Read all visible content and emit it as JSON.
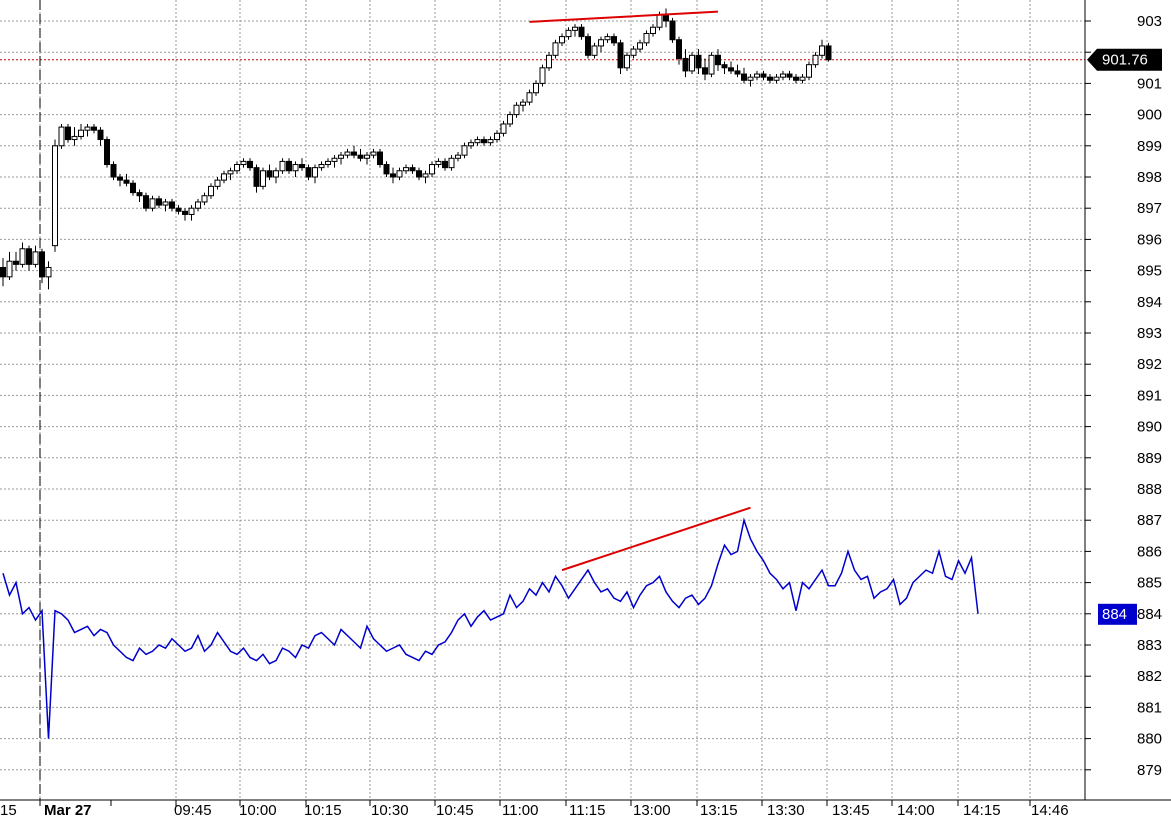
{
  "chart_data": {
    "type": "line",
    "y_axis": {
      "range": [
        878.2,
        903.6
      ],
      "ticks": [
        879,
        880,
        881,
        882,
        883,
        884,
        885,
        886,
        887,
        888,
        889,
        890,
        891,
        892,
        893,
        894,
        895,
        896,
        897,
        898,
        899,
        900,
        901,
        902,
        903
      ],
      "tick_labels": [
        "879",
        "880",
        "881",
        "882",
        "883",
        "884",
        "885",
        "886",
        "887",
        "888",
        "889",
        "890",
        "891",
        "892",
        "893",
        "894",
        "895",
        "896",
        "897",
        "898",
        "899",
        "900",
        "901",
        "",
        "903"
      ]
    },
    "x_axis": {
      "tick_labels": [
        "15",
        "Mar 27",
        "09:45",
        "10:00",
        "10:15",
        "10:30",
        "10:45",
        "11:00",
        "11:15",
        "13:00",
        "13:15",
        "13:30",
        "13:45",
        "14:00",
        "14:15",
        "14:46"
      ],
      "session_break_label": "Mar 27"
    },
    "grid": true,
    "series": [
      {
        "type": "candlestick",
        "color": "#000000",
        "last_price_label": "901.76",
        "last_price": 901.76,
        "ohlc": [
          [
            895.1,
            895.4,
            894.5,
            894.8
          ],
          [
            894.8,
            895.6,
            894.7,
            895.3
          ],
          [
            895.3,
            895.6,
            895.0,
            895.2
          ],
          [
            895.2,
            895.9,
            895.1,
            895.7
          ],
          [
            895.7,
            895.8,
            895.0,
            895.2
          ],
          [
            895.2,
            895.8,
            895.1,
            895.6
          ],
          [
            895.6,
            895.7,
            894.6,
            894.8
          ],
          [
            894.8,
            895.3,
            894.4,
            895.1
          ],
          [
            895.8,
            899.2,
            895.6,
            899.0
          ],
          [
            899.0,
            899.7,
            898.9,
            899.6
          ],
          [
            899.6,
            899.7,
            899.1,
            899.2
          ],
          [
            899.2,
            899.6,
            899.0,
            899.3
          ],
          [
            899.3,
            899.7,
            899.2,
            899.5
          ],
          [
            899.5,
            899.7,
            899.3,
            899.6
          ],
          [
            899.6,
            899.7,
            899.4,
            899.5
          ],
          [
            899.5,
            899.6,
            899.0,
            899.2
          ],
          [
            899.2,
            899.3,
            898.3,
            898.4
          ],
          [
            898.4,
            898.5,
            897.9,
            898.0
          ],
          [
            898.0,
            898.1,
            897.7,
            897.9
          ],
          [
            897.9,
            898.1,
            897.7,
            897.8
          ],
          [
            897.8,
            897.9,
            897.4,
            897.5
          ],
          [
            897.5,
            897.6,
            897.2,
            897.4
          ],
          [
            897.4,
            897.5,
            896.9,
            897.0
          ],
          [
            897.0,
            897.4,
            896.9,
            897.3
          ],
          [
            897.3,
            897.4,
            897.0,
            897.1
          ],
          [
            897.1,
            897.3,
            896.9,
            897.2
          ],
          [
            897.2,
            897.3,
            896.9,
            897.0
          ],
          [
            897.0,
            897.1,
            896.8,
            896.9
          ],
          [
            896.9,
            897.0,
            896.6,
            896.8
          ],
          [
            896.8,
            897.1,
            896.6,
            897.0
          ],
          [
            897.0,
            897.3,
            896.9,
            897.2
          ],
          [
            897.2,
            897.5,
            897.1,
            897.4
          ],
          [
            897.4,
            897.8,
            897.3,
            897.7
          ],
          [
            897.7,
            898.0,
            897.6,
            897.9
          ],
          [
            897.9,
            898.2,
            897.8,
            898.1
          ],
          [
            898.1,
            898.3,
            897.9,
            898.2
          ],
          [
            898.2,
            898.5,
            898.1,
            898.4
          ],
          [
            898.4,
            898.6,
            898.3,
            898.5
          ],
          [
            898.5,
            898.6,
            898.2,
            898.3
          ],
          [
            898.3,
            898.4,
            897.5,
            897.7
          ],
          [
            897.7,
            898.3,
            897.6,
            898.2
          ],
          [
            898.2,
            898.4,
            897.9,
            898.0
          ],
          [
            898.0,
            898.3,
            897.8,
            898.2
          ],
          [
            898.2,
            898.6,
            898.1,
            898.5
          ],
          [
            898.5,
            898.6,
            898.1,
            898.2
          ],
          [
            898.2,
            898.5,
            898.0,
            898.4
          ],
          [
            898.4,
            898.6,
            898.2,
            898.3
          ],
          [
            898.3,
            898.4,
            897.9,
            898.0
          ],
          [
            898.0,
            898.4,
            897.8,
            898.3
          ],
          [
            898.3,
            898.5,
            898.2,
            898.4
          ],
          [
            898.4,
            898.6,
            898.3,
            898.5
          ],
          [
            898.5,
            898.7,
            898.3,
            898.6
          ],
          [
            898.6,
            898.8,
            898.4,
            898.7
          ],
          [
            898.7,
            898.9,
            898.6,
            898.8
          ],
          [
            898.8,
            899.0,
            898.6,
            898.7
          ],
          [
            898.7,
            898.9,
            898.5,
            898.6
          ],
          [
            898.6,
            898.8,
            898.4,
            898.7
          ],
          [
            898.7,
            898.9,
            898.6,
            898.8
          ],
          [
            898.8,
            898.9,
            898.3,
            898.4
          ],
          [
            898.4,
            898.5,
            898.0,
            898.1
          ],
          [
            898.1,
            898.3,
            897.8,
            898.0
          ],
          [
            898.0,
            898.3,
            897.9,
            898.2
          ],
          [
            898.2,
            898.4,
            898.1,
            898.3
          ],
          [
            898.3,
            898.4,
            898.1,
            898.2
          ],
          [
            898.2,
            898.3,
            897.9,
            898.0
          ],
          [
            898.0,
            898.2,
            897.8,
            898.1
          ],
          [
            898.1,
            898.5,
            898.0,
            898.4
          ],
          [
            898.4,
            898.6,
            898.3,
            898.5
          ],
          [
            898.5,
            898.6,
            898.2,
            898.3
          ],
          [
            898.3,
            898.7,
            898.2,
            898.6
          ],
          [
            898.6,
            898.8,
            898.5,
            898.7
          ],
          [
            898.7,
            899.1,
            898.6,
            899.0
          ],
          [
            899.0,
            899.2,
            898.9,
            899.1
          ],
          [
            899.1,
            899.3,
            899.0,
            899.2
          ],
          [
            899.2,
            899.3,
            899.0,
            899.1
          ],
          [
            899.1,
            899.3,
            899.0,
            899.2
          ],
          [
            899.2,
            899.5,
            899.1,
            899.4
          ],
          [
            899.4,
            899.8,
            899.3,
            899.7
          ],
          [
            899.7,
            900.1,
            899.6,
            900.0
          ],
          [
            900.0,
            900.4,
            899.9,
            900.3
          ],
          [
            900.3,
            900.5,
            900.1,
            900.4
          ],
          [
            900.4,
            900.8,
            900.3,
            900.7
          ],
          [
            900.7,
            901.1,
            900.6,
            901.0
          ],
          [
            901.0,
            901.6,
            900.9,
            901.5
          ],
          [
            901.5,
            902.0,
            901.4,
            901.9
          ],
          [
            901.9,
            902.4,
            901.8,
            902.3
          ],
          [
            902.3,
            902.6,
            902.2,
            902.5
          ],
          [
            902.5,
            902.8,
            902.4,
            902.7
          ],
          [
            902.7,
            902.9,
            902.5,
            902.8
          ],
          [
            902.8,
            902.9,
            902.4,
            902.5
          ],
          [
            902.5,
            902.6,
            901.8,
            901.9
          ],
          [
            901.9,
            902.3,
            901.8,
            902.2
          ],
          [
            902.2,
            902.5,
            902.0,
            902.4
          ],
          [
            902.4,
            902.6,
            902.3,
            902.5
          ],
          [
            902.5,
            902.6,
            902.2,
            902.3
          ],
          [
            902.3,
            902.4,
            901.3,
            901.5
          ],
          [
            901.5,
            902.0,
            901.4,
            901.9
          ],
          [
            901.9,
            902.2,
            901.8,
            902.1
          ],
          [
            902.1,
            902.4,
            902.0,
            902.3
          ],
          [
            902.3,
            902.7,
            902.2,
            902.6
          ],
          [
            902.6,
            902.9,
            902.5,
            902.8
          ],
          [
            902.8,
            903.3,
            902.7,
            903.2
          ],
          [
            903.2,
            903.4,
            902.8,
            903.0
          ],
          [
            903.0,
            903.1,
            902.3,
            902.4
          ],
          [
            902.4,
            902.5,
            901.6,
            901.8
          ],
          [
            901.8,
            902.1,
            901.2,
            901.4
          ],
          [
            901.4,
            902.0,
            901.3,
            901.9
          ],
          [
            901.9,
            902.1,
            901.3,
            901.5
          ],
          [
            901.5,
            901.8,
            901.1,
            901.3
          ],
          [
            901.3,
            902.0,
            901.2,
            901.9
          ],
          [
            901.9,
            902.1,
            901.4,
            901.6
          ],
          [
            901.6,
            901.7,
            901.3,
            901.5
          ],
          [
            901.5,
            901.7,
            901.3,
            901.4
          ],
          [
            901.4,
            901.6,
            901.2,
            901.3
          ],
          [
            901.3,
            901.5,
            901.0,
            901.1
          ],
          [
            901.1,
            901.3,
            900.9,
            901.2
          ],
          [
            901.2,
            901.4,
            901.1,
            901.3
          ],
          [
            901.3,
            901.4,
            901.1,
            901.2
          ],
          [
            901.2,
            901.3,
            901.0,
            901.1
          ],
          [
            901.1,
            901.3,
            901.0,
            901.2
          ],
          [
            901.2,
            901.4,
            901.1,
            901.3
          ],
          [
            901.3,
            901.4,
            901.1,
            901.2
          ],
          [
            901.2,
            901.3,
            901.0,
            901.1
          ],
          [
            901.1,
            901.3,
            901.0,
            901.2
          ],
          [
            901.2,
            901.7,
            901.1,
            901.6
          ],
          [
            901.6,
            902.0,
            901.5,
            901.9
          ],
          [
            901.9,
            902.4,
            901.8,
            902.2
          ],
          [
            902.2,
            902.3,
            901.7,
            901.76
          ]
        ]
      },
      {
        "type": "line",
        "color": "#0000cc",
        "last_value_label": "884",
        "last_value": 884,
        "values": [
          885.3,
          884.6,
          885.0,
          884.0,
          884.2,
          883.8,
          884.1,
          880.0,
          884.1,
          884.0,
          883.8,
          883.4,
          883.5,
          883.6,
          883.3,
          883.5,
          883.4,
          883.0,
          882.8,
          882.6,
          882.5,
          882.9,
          882.7,
          882.8,
          883.0,
          882.9,
          883.2,
          883.0,
          882.8,
          882.9,
          883.3,
          882.8,
          883.0,
          883.4,
          883.1,
          882.8,
          882.7,
          882.9,
          882.6,
          882.5,
          882.7,
          882.4,
          882.5,
          882.9,
          882.8,
          882.6,
          883.0,
          882.9,
          883.3,
          883.4,
          883.2,
          883.0,
          883.5,
          883.3,
          883.1,
          882.9,
          883.6,
          883.2,
          883.0,
          882.8,
          882.9,
          883.0,
          882.7,
          882.6,
          882.5,
          882.8,
          882.7,
          883.0,
          883.1,
          883.4,
          883.8,
          884.0,
          883.6,
          883.9,
          884.1,
          883.8,
          883.9,
          884.0,
          884.6,
          884.2,
          884.4,
          884.8,
          884.6,
          885.0,
          884.7,
          885.2,
          884.9,
          884.5,
          884.8,
          885.1,
          885.4,
          885.0,
          884.7,
          884.8,
          884.5,
          884.4,
          884.7,
          884.2,
          884.6,
          884.9,
          885.0,
          885.2,
          884.7,
          884.4,
          884.2,
          884.5,
          884.6,
          884.3,
          884.5,
          884.9,
          885.6,
          886.2,
          885.9,
          886.0,
          887.0,
          886.4,
          886.0,
          885.7,
          885.3,
          885.1,
          884.8,
          885.0,
          884.1,
          885.0,
          884.8,
          885.1,
          885.4,
          884.9,
          884.9,
          885.3,
          886.0,
          885.4,
          885.1,
          885.2,
          884.5,
          884.7,
          884.8,
          885.1,
          884.3,
          884.5,
          885.0,
          885.2,
          885.4,
          885.3,
          886.0,
          885.2,
          885.1,
          885.7,
          885.3,
          885.8,
          884.0
        ]
      }
    ],
    "annotations": [
      {
        "type": "trendline",
        "color": "#dd0000",
        "from": [
          81,
          902.97
        ],
        "to": [
          110,
          903.3
        ]
      },
      {
        "type": "trendline",
        "color": "#dd0000",
        "from": [
          86,
          885.4
        ],
        "to": [
          115,
          887.4
        ]
      }
    ],
    "current_price_line": {
      "value": 901.76,
      "color": "#cc0000",
      "style": "dotted"
    }
  }
}
